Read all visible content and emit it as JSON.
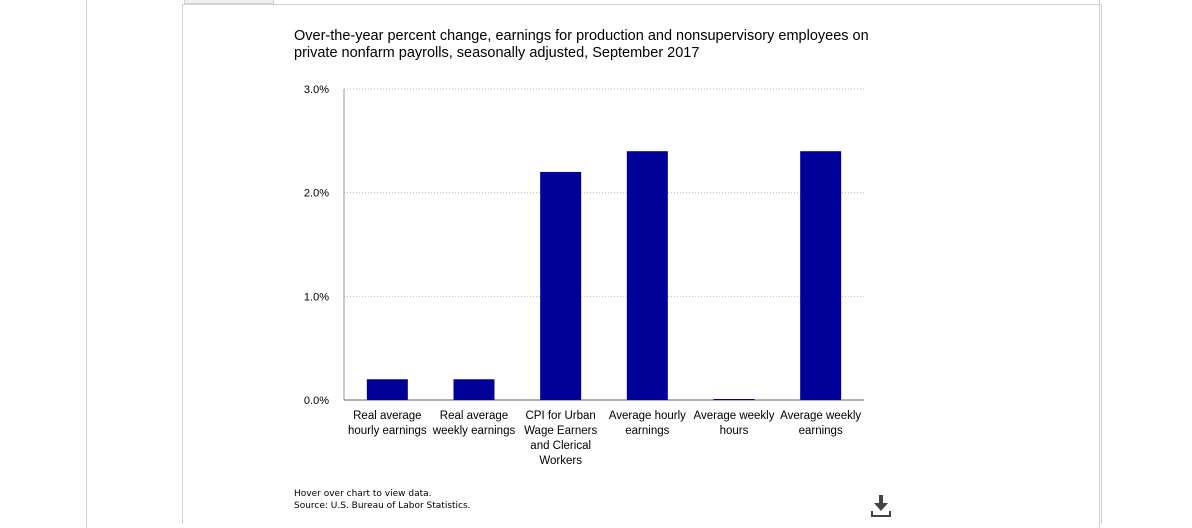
{
  "chart_data": {
    "type": "bar",
    "title": "Over-the-year percent change, earnings for production and nonsupervisory employees on private nonfarm payrolls, seasonally adjusted, September 2017",
    "categories": [
      [
        "Real average",
        "hourly earnings"
      ],
      [
        "Real average",
        "weekly earnings"
      ],
      [
        "CPI for Urban",
        "Wage Earners",
        "and Clerical",
        "Workers"
      ],
      [
        "Average hourly",
        "earnings"
      ],
      [
        "Average weekly",
        "hours"
      ],
      [
        "Average weekly",
        "earnings"
      ]
    ],
    "values": [
      0.2,
      0.2,
      2.2,
      2.4,
      0.0,
      2.4
    ],
    "yticks": [
      "0.0%",
      "1.0%",
      "2.0%",
      "3.0%"
    ],
    "ylim": [
      0,
      3
    ],
    "xlabel": "",
    "ylabel": "",
    "grid": true,
    "bar_color": "#000099"
  },
  "footer": {
    "hint": "Hover over chart to view data.",
    "source": "Source: U.S. Bureau of Labor Statistics."
  },
  "icons": {
    "download": "download-icon"
  }
}
